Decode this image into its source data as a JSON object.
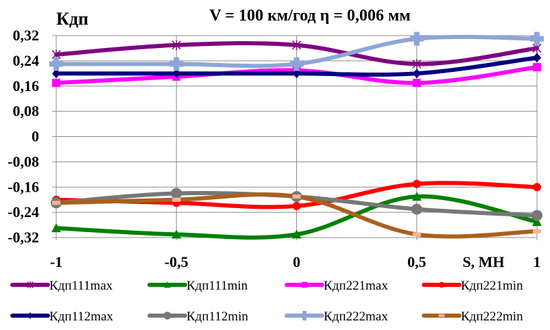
{
  "chart_data": {
    "type": "line",
    "title": "V = 100 км/год  η = 0,006 мм",
    "ylabel": "Кдп",
    "xlabel": "S, МН",
    "x": [
      -1,
      -0.5,
      0,
      0.5,
      1
    ],
    "xlim": [
      -1,
      1
    ],
    "ylim": [
      -0.32,
      0.32
    ],
    "x_tick_labels": [
      "-1",
      "-0,5",
      "0",
      "0,5",
      "1"
    ],
    "y_ticks": [
      0.32,
      0.24,
      0.16,
      0.08,
      0,
      -0.08,
      -0.16,
      -0.24,
      -0.32
    ],
    "y_tick_labels": [
      "0,32",
      "0,24",
      "0,16",
      "0,08",
      "0",
      "-0,08",
      "-0,16",
      "-0,24",
      "-0,32"
    ],
    "grid": true,
    "smooth": true,
    "legend_position": "bottom",
    "series": [
      {
        "name": "Кдп111max",
        "color": "#800080",
        "marker": "asterisk",
        "values": [
          0.26,
          0.29,
          0.29,
          0.23,
          0.28
        ]
      },
      {
        "name": "Кдп111min",
        "color": "#008000",
        "marker": "triangle",
        "values": [
          -0.29,
          -0.31,
          -0.31,
          -0.19,
          -0.27
        ]
      },
      {
        "name": "Кдп221max",
        "color": "#ff00ff",
        "marker": "square",
        "values": [
          0.17,
          0.19,
          0.21,
          0.17,
          0.22
        ]
      },
      {
        "name": "Кдп221min",
        "color": "#ff0000",
        "marker": "circle-small",
        "values": [
          -0.2,
          -0.21,
          -0.22,
          -0.15,
          -0.16
        ]
      },
      {
        "name": "Кдп112max",
        "color": "#000080",
        "marker": "diamond",
        "values": [
          0.2,
          0.2,
          0.2,
          0.2,
          0.25
        ]
      },
      {
        "name": "Кдп112min",
        "color": "#777777",
        "marker": "circle",
        "values": [
          -0.21,
          -0.18,
          -0.19,
          -0.23,
          -0.25
        ]
      },
      {
        "name": "Кдп222max",
        "color": "#8ea5d8",
        "marker": "plus",
        "values": [
          0.23,
          0.23,
          0.23,
          0.31,
          0.31
        ]
      },
      {
        "name": "Кдп222min",
        "color": "#a8611e",
        "marker": "dash",
        "values": [
          -0.21,
          -0.2,
          -0.19,
          -0.31,
          -0.3
        ]
      }
    ]
  }
}
